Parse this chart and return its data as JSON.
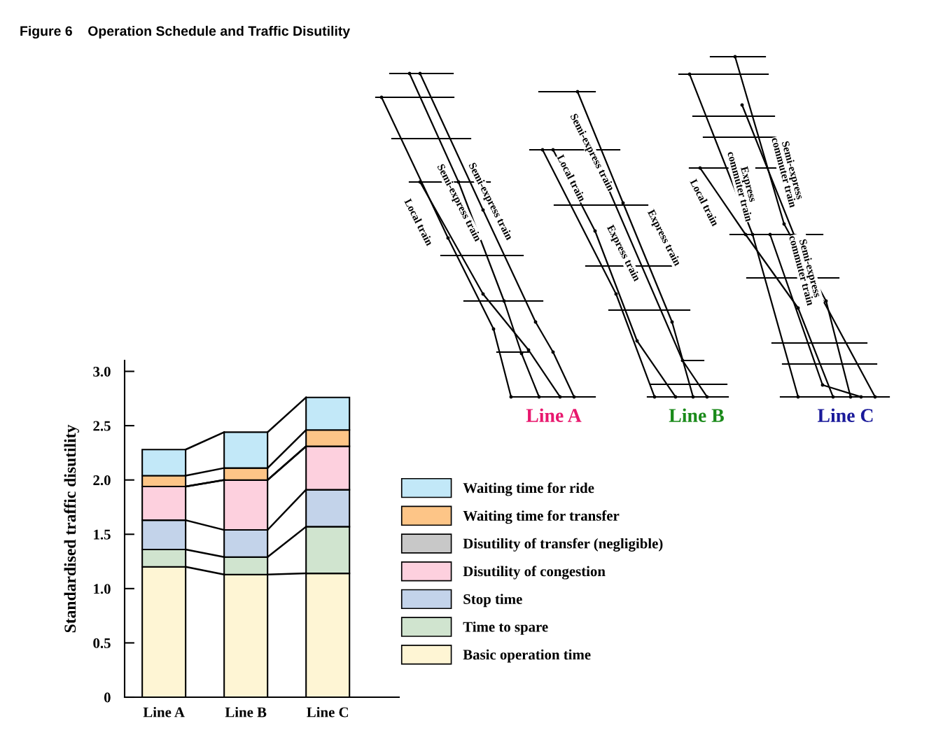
{
  "chart_data": [
    {
      "type": "bar",
      "title": "Figure 6    Operation Schedule and Traffic Disutility",
      "ylabel": "Standardised traffic disutility",
      "categories": [
        "Line A",
        "Line B",
        "Line C"
      ],
      "stacked": true,
      "ylim": [
        0,
        3.1
      ],
      "yticks": [
        0,
        0.5,
        {
          "value": 1,
          "label": "1.0"
        },
        1.5,
        {
          "value": 2,
          "label": "2.0"
        },
        2.5,
        {
          "value": 3,
          "label": "3.0"
        }
      ],
      "grid": false,
      "legend": "right",
      "series": [
        {
          "name": "Basic operation time",
          "color": "#fef5d4",
          "values": [
            1.2,
            1.13,
            1.14
          ]
        },
        {
          "name": "Time to spare",
          "color": "#d0e4cf",
          "values": [
            0.16,
            0.16,
            0.43
          ]
        },
        {
          "name": "Stop time",
          "color": "#c3d3ea",
          "values": [
            0.27,
            0.25,
            0.34
          ]
        },
        {
          "name": "Disutility of congestion",
          "color": "#fdd0de",
          "values": [
            0.31,
            0.46,
            0.4
          ]
        },
        {
          "name": "Disutility of transfer (negligible)",
          "color": "#c8c8c8",
          "values": [
            0,
            0,
            0
          ]
        },
        {
          "name": "Waiting time for transfer",
          "color": "#fdc587",
          "values": [
            0.1,
            0.11,
            0.15
          ]
        },
        {
          "name": "Waiting time for ride",
          "color": "#c2e8f8",
          "values": [
            0.24,
            0.33,
            0.3
          ]
        }
      ]
    },
    {
      "type": "other",
      "annotations": [
        "Local train",
        "Semi-express train",
        "Semi-express train",
        "Semi-express train",
        "Local train",
        "Express train",
        "Express train",
        "Local train",
        "Express\ncommuter train",
        "Semi-express\ncommuter train",
        "Semi-express\ncommuter train",
        "Line A",
        "Line B",
        "Line C"
      ],
      "colors": [
        null,
        null,
        null,
        null,
        null,
        null,
        null,
        null,
        null,
        null,
        null,
        "#e8186e",
        "#1a8a1a",
        "#1a1a9a"
      ]
    }
  ]
}
